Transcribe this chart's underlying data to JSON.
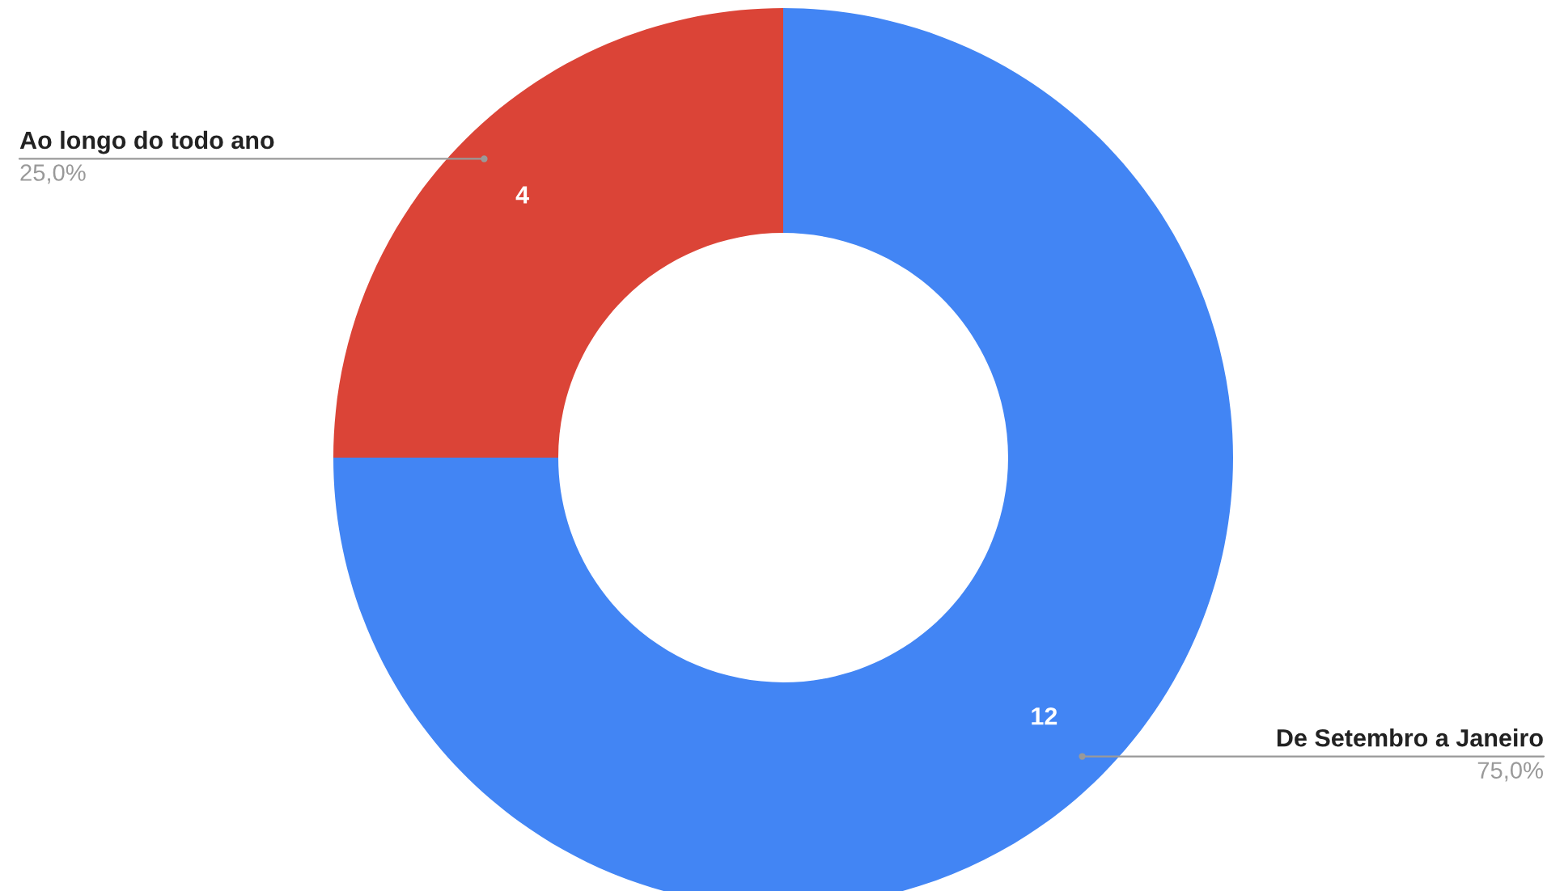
{
  "chart_data": {
    "type": "donut",
    "categories": [
      "De Setembro a Janeiro",
      "Ao longo do todo ano"
    ],
    "values": [
      12,
      4
    ],
    "colors": [
      "#4285f4",
      "#db4437"
    ],
    "data_labels": true,
    "annotations": [
      "75,0%",
      "25,0%"
    ],
    "legend": false
  }
}
